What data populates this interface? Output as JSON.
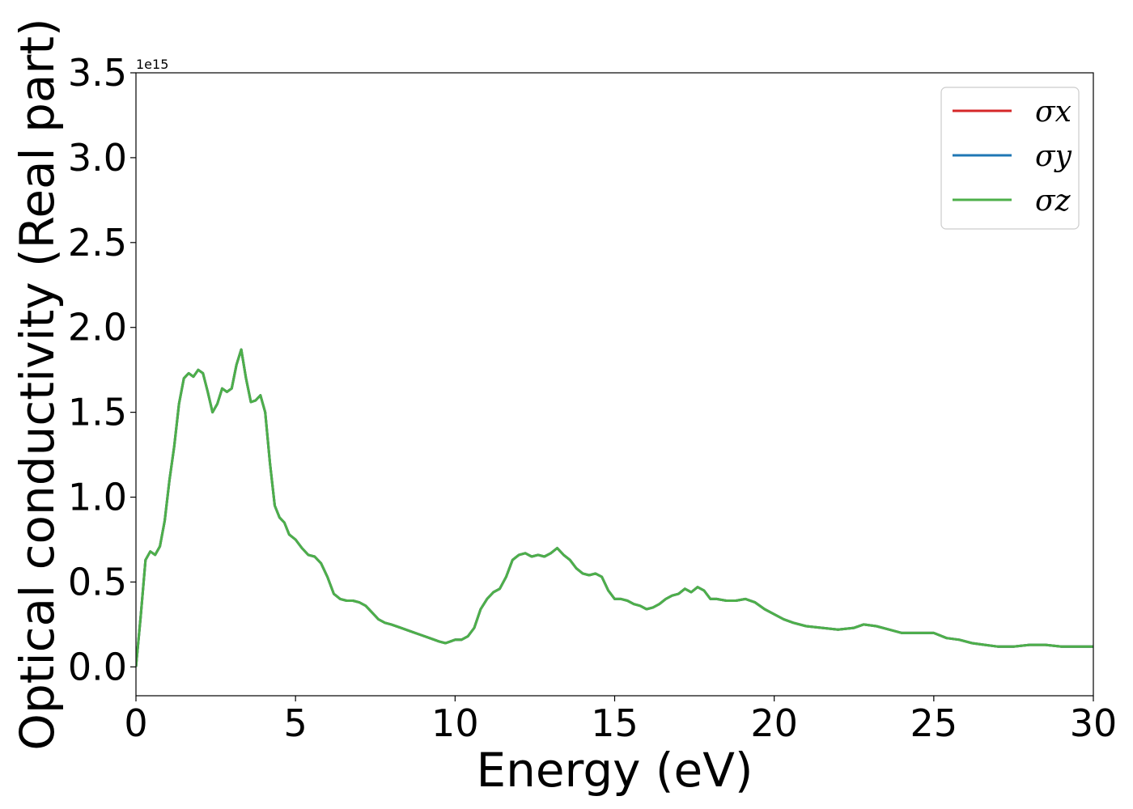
{
  "chart_data": {
    "type": "line",
    "title": "",
    "xlabel": "Energy (eV)",
    "ylabel": "Optical conductivity (Real part)",
    "y_offset_text": "1e15",
    "xlim": [
      0,
      30
    ],
    "ylim": [
      -0.17,
      3.5
    ],
    "x_ticks": [
      0,
      5,
      10,
      15,
      20,
      25,
      30
    ],
    "x_tick_labels": [
      "0",
      "5",
      "10",
      "15",
      "20",
      "25",
      "30"
    ],
    "y_ticks": [
      0.0,
      0.5,
      1.0,
      1.5,
      2.0,
      2.5,
      3.0,
      3.5
    ],
    "y_tick_labels": [
      "0.0",
      "0.5",
      "1.0",
      "1.5",
      "2.0",
      "2.5",
      "3.0",
      "3.5"
    ],
    "grid": false,
    "legend_position": "top-right",
    "x": [
      0.0,
      0.15,
      0.3,
      0.45,
      0.6,
      0.75,
      0.9,
      1.05,
      1.2,
      1.35,
      1.5,
      1.65,
      1.8,
      1.95,
      2.1,
      2.25,
      2.4,
      2.55,
      2.7,
      2.85,
      3.0,
      3.15,
      3.3,
      3.45,
      3.6,
      3.75,
      3.9,
      4.05,
      4.2,
      4.35,
      4.5,
      4.65,
      4.8,
      5.0,
      5.2,
      5.4,
      5.6,
      5.8,
      6.0,
      6.2,
      6.4,
      6.6,
      6.8,
      7.0,
      7.2,
      7.4,
      7.6,
      7.8,
      8.0,
      8.3,
      8.6,
      8.9,
      9.2,
      9.5,
      9.7,
      9.85,
      10.0,
      10.2,
      10.4,
      10.6,
      10.8,
      11.0,
      11.2,
      11.4,
      11.6,
      11.8,
      12.0,
      12.2,
      12.4,
      12.6,
      12.8,
      13.0,
      13.2,
      13.4,
      13.6,
      13.8,
      14.0,
      14.2,
      14.4,
      14.6,
      14.8,
      15.0,
      15.2,
      15.4,
      15.6,
      15.8,
      16.0,
      16.2,
      16.4,
      16.6,
      16.8,
      17.0,
      17.2,
      17.4,
      17.6,
      17.8,
      18.0,
      18.2,
      18.5,
      18.8,
      19.1,
      19.4,
      19.7,
      20.0,
      20.3,
      20.6,
      21.0,
      21.5,
      22.0,
      22.5,
      22.8,
      23.2,
      23.6,
      24.0,
      24.5,
      25.0,
      25.4,
      25.8,
      26.2,
      26.6,
      27.0,
      27.5,
      28.0,
      28.5,
      29.0,
      29.5,
      30.0
    ],
    "series": [
      {
        "name": "σx",
        "color": "#d62728",
        "values": [
          0.0,
          0.3,
          0.63,
          0.68,
          0.66,
          0.71,
          0.86,
          1.1,
          1.3,
          1.55,
          1.7,
          1.73,
          1.71,
          1.75,
          1.73,
          1.62,
          1.5,
          1.55,
          1.64,
          1.62,
          1.64,
          1.78,
          1.87,
          1.7,
          1.56,
          1.57,
          1.6,
          1.5,
          1.2,
          0.95,
          0.88,
          0.85,
          0.78,
          0.75,
          0.7,
          0.66,
          0.65,
          0.61,
          0.53,
          0.43,
          0.4,
          0.39,
          0.39,
          0.38,
          0.36,
          0.32,
          0.28,
          0.26,
          0.25,
          0.23,
          0.21,
          0.19,
          0.17,
          0.15,
          0.14,
          0.15,
          0.16,
          0.16,
          0.18,
          0.23,
          0.34,
          0.4,
          0.44,
          0.46,
          0.53,
          0.63,
          0.66,
          0.67,
          0.65,
          0.66,
          0.65,
          0.67,
          0.7,
          0.66,
          0.63,
          0.58,
          0.55,
          0.54,
          0.55,
          0.53,
          0.45,
          0.4,
          0.4,
          0.39,
          0.37,
          0.36,
          0.34,
          0.35,
          0.37,
          0.4,
          0.42,
          0.43,
          0.46,
          0.44,
          0.47,
          0.45,
          0.4,
          0.4,
          0.39,
          0.39,
          0.4,
          0.38,
          0.34,
          0.31,
          0.28,
          0.26,
          0.24,
          0.23,
          0.22,
          0.23,
          0.25,
          0.24,
          0.22,
          0.2,
          0.2,
          0.2,
          0.17,
          0.16,
          0.14,
          0.13,
          0.12,
          0.12,
          0.13,
          0.13,
          0.12,
          0.12,
          0.12
        ]
      },
      {
        "name": "σy",
        "color": "#1f77b4",
        "values": [
          0.0,
          0.3,
          0.63,
          0.68,
          0.66,
          0.71,
          0.86,
          1.1,
          1.3,
          1.55,
          1.7,
          1.73,
          1.71,
          1.75,
          1.73,
          1.62,
          1.5,
          1.55,
          1.64,
          1.62,
          1.64,
          1.78,
          1.87,
          1.7,
          1.56,
          1.57,
          1.6,
          1.5,
          1.2,
          0.95,
          0.88,
          0.85,
          0.78,
          0.75,
          0.7,
          0.66,
          0.65,
          0.61,
          0.53,
          0.43,
          0.4,
          0.39,
          0.39,
          0.38,
          0.36,
          0.32,
          0.28,
          0.26,
          0.25,
          0.23,
          0.21,
          0.19,
          0.17,
          0.15,
          0.14,
          0.15,
          0.16,
          0.16,
          0.18,
          0.23,
          0.34,
          0.4,
          0.44,
          0.46,
          0.53,
          0.63,
          0.66,
          0.67,
          0.65,
          0.66,
          0.65,
          0.67,
          0.7,
          0.66,
          0.63,
          0.58,
          0.55,
          0.54,
          0.55,
          0.53,
          0.45,
          0.4,
          0.4,
          0.39,
          0.37,
          0.36,
          0.34,
          0.35,
          0.37,
          0.4,
          0.42,
          0.43,
          0.46,
          0.44,
          0.47,
          0.45,
          0.4,
          0.4,
          0.39,
          0.39,
          0.4,
          0.38,
          0.34,
          0.31,
          0.28,
          0.26,
          0.24,
          0.23,
          0.22,
          0.23,
          0.25,
          0.24,
          0.22,
          0.2,
          0.2,
          0.2,
          0.17,
          0.16,
          0.14,
          0.13,
          0.12,
          0.12,
          0.13,
          0.13,
          0.12,
          0.12,
          0.12
        ]
      },
      {
        "name": "σz",
        "color": "#4daf4a",
        "values": [
          0.0,
          0.3,
          0.63,
          0.68,
          0.66,
          0.71,
          0.86,
          1.1,
          1.3,
          1.55,
          1.7,
          1.73,
          1.71,
          1.75,
          1.73,
          1.62,
          1.5,
          1.55,
          1.64,
          1.62,
          1.64,
          1.78,
          1.87,
          1.7,
          1.56,
          1.57,
          1.6,
          1.5,
          1.2,
          0.95,
          0.88,
          0.85,
          0.78,
          0.75,
          0.7,
          0.66,
          0.65,
          0.61,
          0.53,
          0.43,
          0.4,
          0.39,
          0.39,
          0.38,
          0.36,
          0.32,
          0.28,
          0.26,
          0.25,
          0.23,
          0.21,
          0.19,
          0.17,
          0.15,
          0.14,
          0.15,
          0.16,
          0.16,
          0.18,
          0.23,
          0.34,
          0.4,
          0.44,
          0.46,
          0.53,
          0.63,
          0.66,
          0.67,
          0.65,
          0.66,
          0.65,
          0.67,
          0.7,
          0.66,
          0.63,
          0.58,
          0.55,
          0.54,
          0.55,
          0.53,
          0.45,
          0.4,
          0.4,
          0.39,
          0.37,
          0.36,
          0.34,
          0.35,
          0.37,
          0.4,
          0.42,
          0.43,
          0.46,
          0.44,
          0.47,
          0.45,
          0.4,
          0.4,
          0.39,
          0.39,
          0.4,
          0.38,
          0.34,
          0.31,
          0.28,
          0.26,
          0.24,
          0.23,
          0.22,
          0.23,
          0.25,
          0.24,
          0.22,
          0.2,
          0.2,
          0.2,
          0.17,
          0.16,
          0.14,
          0.13,
          0.12,
          0.12,
          0.13,
          0.13,
          0.12,
          0.12,
          0.12
        ]
      }
    ]
  }
}
